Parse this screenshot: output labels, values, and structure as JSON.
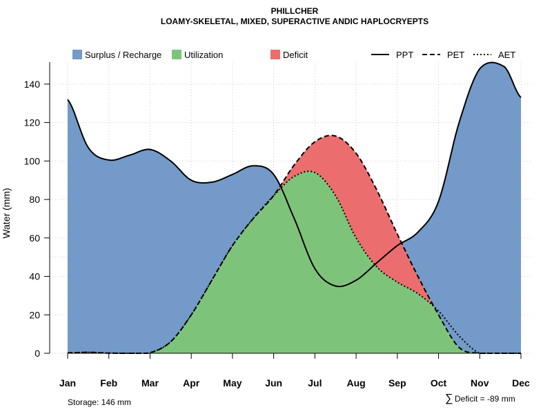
{
  "chart_data": {
    "type": "area",
    "title": "PHILLCHER",
    "subtitle": "LOAMY-SKELETAL, MIXED, SUPERACTIVE ANDIC HAPLOCRYEPTS",
    "ylabel": "Water (mm)",
    "xlabel": "",
    "ylim": [
      0,
      150
    ],
    "yticks": [
      "0",
      "20",
      "40",
      "60",
      "80",
      "100",
      "120",
      "140"
    ],
    "categories": [
      "Jan",
      "Feb",
      "Mar",
      "Apr",
      "May",
      "Jun",
      "Jul",
      "Aug",
      "Sep",
      "Oct",
      "Nov",
      "Dec"
    ],
    "series": [
      {
        "name": "PPT",
        "values": [
          [
            0,
            132
          ],
          [
            0.5,
            107
          ],
          [
            1,
            100.5
          ],
          [
            1.5,
            103
          ],
          [
            2,
            106
          ],
          [
            2.5,
            100
          ],
          [
            3,
            90
          ],
          [
            3.5,
            89
          ],
          [
            4,
            93
          ],
          [
            4.5,
            97.5
          ],
          [
            5,
            93
          ],
          [
            5.5,
            70
          ],
          [
            6,
            44
          ],
          [
            6.5,
            35
          ],
          [
            7,
            38
          ],
          [
            7.5,
            47
          ],
          [
            8,
            56
          ],
          [
            8.5,
            63
          ],
          [
            9,
            79
          ],
          [
            9.5,
            120
          ],
          [
            10,
            148
          ],
          [
            10.6,
            149
          ],
          [
            11,
            133
          ]
        ]
      },
      {
        "name": "PET",
        "values": [
          [
            0,
            0.2
          ],
          [
            0.5,
            0.5
          ],
          [
            1,
            0.1
          ],
          [
            1.5,
            0
          ],
          [
            2,
            0.3
          ],
          [
            2.5,
            6
          ],
          [
            3,
            20
          ],
          [
            3.5,
            38
          ],
          [
            4,
            56
          ],
          [
            4.5,
            70
          ],
          [
            5,
            82
          ],
          [
            5.5,
            98
          ],
          [
            6,
            110
          ],
          [
            6.5,
            113
          ],
          [
            7,
            104
          ],
          [
            7.5,
            85
          ],
          [
            8,
            62
          ],
          [
            8.5,
            40
          ],
          [
            9,
            20
          ],
          [
            9.5,
            3
          ],
          [
            10,
            0
          ],
          [
            10.5,
            0
          ],
          [
            11,
            0
          ]
        ]
      },
      {
        "name": "AET",
        "values": [
          [
            0,
            0.2
          ],
          [
            0.5,
            0.5
          ],
          [
            1,
            0.1
          ],
          [
            1.5,
            0
          ],
          [
            2,
            0.3
          ],
          [
            2.5,
            6
          ],
          [
            3,
            20
          ],
          [
            3.5,
            38
          ],
          [
            4,
            56
          ],
          [
            4.5,
            70
          ],
          [
            5,
            82
          ],
          [
            5.5,
            92
          ],
          [
            6,
            94
          ],
          [
            6.5,
            82
          ],
          [
            7,
            60
          ],
          [
            7.5,
            45
          ],
          [
            8,
            37
          ],
          [
            8.5,
            31
          ],
          [
            9,
            22
          ],
          [
            9.5,
            9
          ],
          [
            10,
            0
          ],
          [
            10.5,
            0
          ],
          [
            11,
            0
          ]
        ]
      }
    ],
    "areas": [
      {
        "name": "Surplus / Recharge",
        "color": "#739AC8"
      },
      {
        "name": "Utilization",
        "color": "#7DC47A"
      },
      {
        "name": "Deficit",
        "color": "#EC6D6E"
      }
    ],
    "line_styles": [
      {
        "name": "PPT",
        "style": "solid"
      },
      {
        "name": "PET",
        "style": "dashed"
      },
      {
        "name": "AET",
        "style": "dotted"
      }
    ],
    "grid": true,
    "legend_position": "top"
  },
  "footer": {
    "storage": "Storage: 146 mm",
    "deficit_symbol": "∑",
    "deficit": "Deficit = -89 mm"
  }
}
